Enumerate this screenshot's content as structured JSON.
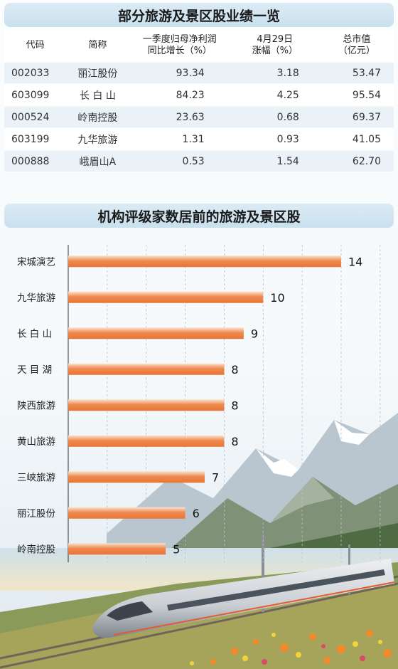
{
  "table": {
    "title": "部分旅游及景区股业绩一览",
    "headers": [
      "代码",
      "简称",
      "一季度归母净利润\n同比增长（%）",
      "4月29日\n涨幅（%）",
      "总市值\n（亿元）"
    ],
    "rows": [
      [
        "002033",
        "丽江股份",
        "93.34",
        "3.18",
        "53.47"
      ],
      [
        "603099",
        "长 白 山",
        "84.23",
        "4.25",
        "95.54"
      ],
      [
        "000524",
        "岭南控股",
        "23.63",
        "0.68",
        "69.37"
      ],
      [
        "603199",
        "九华旅游",
        "1.31",
        "0.93",
        "41.05"
      ],
      [
        "000888",
        "峨眉山A",
        "0.53",
        "1.54",
        "62.70"
      ]
    ]
  },
  "chart_data": {
    "type": "bar",
    "orientation": "horizontal",
    "title": "机构评级家数居前的旅游及景区股",
    "categories": [
      "宋城演艺",
      "九华旅游",
      "长 白 山",
      "天 目 湖",
      "陕西旅游",
      "黄山旅游",
      "三峡旅游",
      "丽江股份",
      "岭南控股"
    ],
    "values": [
      14,
      10,
      9,
      8,
      8,
      8,
      7,
      6,
      5
    ],
    "xlim": [
      0,
      14
    ],
    "grid": true,
    "bar_color": "#ee8a50"
  }
}
